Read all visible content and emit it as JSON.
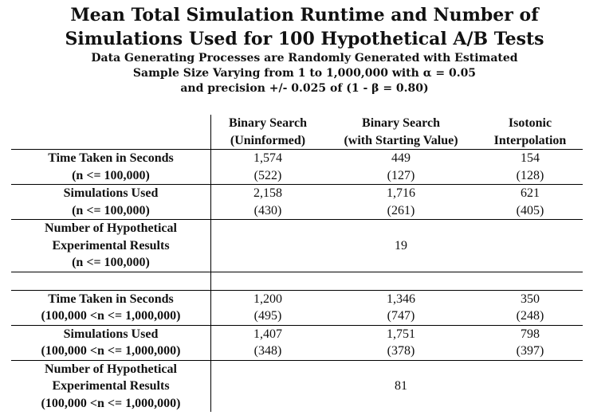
{
  "title": {
    "line1": "Mean Total Simulation Runtime and Number of",
    "line2": "Simulations Used for 100 Hypothetical A/B Tests"
  },
  "subtitle": {
    "line1": "Data Generating Processes are Randomly Generated with Estimated",
    "line2": "Sample Size Varying from 1 to 1,000,000 with α = 0.05",
    "line3": "and precision +/- 0.025 of (1 - β = 0.80)"
  },
  "columns": [
    {
      "line1": "Binary Search",
      "line2": "(Uninformed)"
    },
    {
      "line1": "Binary Search",
      "line2": "(with Starting Value)"
    },
    {
      "line1": "Isotonic",
      "line2": "Interpolation"
    }
  ],
  "sections": [
    {
      "time": {
        "label1": "Time Taken in Seconds",
        "label2": "(n <= 100,000)",
        "means": [
          "1,574",
          "449",
          "154"
        ],
        "sds": [
          "(522)",
          "(127)",
          "(128)"
        ]
      },
      "sims": {
        "label1": "Simulations Used",
        "label2": "(n <= 100,000)",
        "means": [
          "2,158",
          "1,716",
          "621"
        ],
        "sds": [
          "(430)",
          "(261)",
          "(405)"
        ]
      },
      "count": {
        "label1": "Number of Hypothetical",
        "label2": "Experimental Results",
        "label3": "(n <= 100,000)",
        "value": "19"
      }
    },
    {
      "time": {
        "label1": "Time Taken in Seconds",
        "label2": "(100,000 <n <= 1,000,000)",
        "means": [
          "1,200",
          "1,346",
          "350"
        ],
        "sds": [
          "(495)",
          "(747)",
          "(248)"
        ]
      },
      "sims": {
        "label1": "Simulations Used",
        "label2": "(100,000 <n <= 1,000,000)",
        "means": [
          "1,407",
          "1,751",
          "798"
        ],
        "sds": [
          "(348)",
          "(378)",
          "(397)"
        ]
      },
      "count": {
        "label1": "Number of Hypothetical",
        "label2": "Experimental Results",
        "label3": "(100,000 <n <= 1,000,000)",
        "value": "81"
      }
    }
  ]
}
